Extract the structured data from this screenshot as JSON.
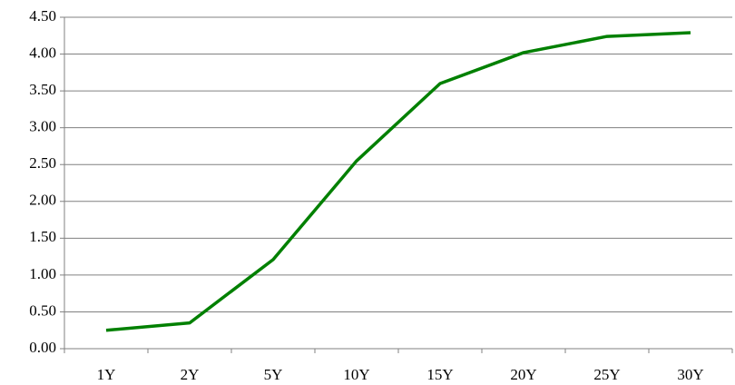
{
  "chart_data": {
    "type": "line",
    "categories": [
      "1Y",
      "2Y",
      "5Y",
      "10Y",
      "15Y",
      "20Y",
      "25Y",
      "30Y"
    ],
    "series": [
      {
        "color": "#008000",
        "values": [
          0.25,
          0.35,
          1.21,
          2.55,
          3.6,
          4.02,
          4.24,
          4.29
        ]
      }
    ],
    "ylim": [
      0,
      4.5
    ],
    "yticks": [
      {
        "value": 0,
        "label": "0.00"
      },
      {
        "value": 0.5,
        "label": "0.50"
      },
      {
        "value": 1,
        "label": "1.00"
      },
      {
        "value": 1.5,
        "label": "1.50"
      },
      {
        "value": 2,
        "label": "2.00"
      },
      {
        "value": 2.5,
        "label": "2.50"
      },
      {
        "value": 3,
        "label": "3.00"
      },
      {
        "value": 3.5,
        "label": "3.50"
      },
      {
        "value": 4,
        "label": "4.00"
      },
      {
        "value": 4.5,
        "label": "4.50"
      }
    ],
    "grid": true
  }
}
